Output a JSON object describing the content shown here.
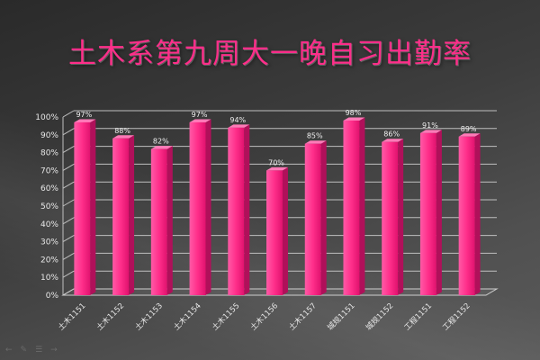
{
  "title": "土木系第九周大一晚自习出勤率",
  "chart_data": {
    "type": "bar",
    "categories": [
      "土木1151",
      "土木1152",
      "土木1153",
      "土木1154",
      "土木1155",
      "土木1156",
      "土木1157",
      "城规1151",
      "城规1152",
      "工程1151",
      "工程1152"
    ],
    "values": [
      97,
      88,
      82,
      97,
      94,
      70,
      85,
      98,
      86,
      91,
      89
    ],
    "data_labels": [
      "97%",
      "88%",
      "82%",
      "97%",
      "94%",
      "70%",
      "85%",
      "98%",
      "86%",
      "91%",
      "89%"
    ],
    "y_ticks": [
      "0%",
      "10%",
      "20%",
      "30%",
      "40%",
      "50%",
      "60%",
      "70%",
      "80%",
      "90%",
      "100%"
    ],
    "ylim": [
      0,
      100
    ],
    "grid": true,
    "bar_color": "#ff2e8a"
  },
  "nav_icons": [
    "prev-arrow-icon",
    "pen-icon",
    "menu-icon",
    "next-arrow-icon"
  ]
}
